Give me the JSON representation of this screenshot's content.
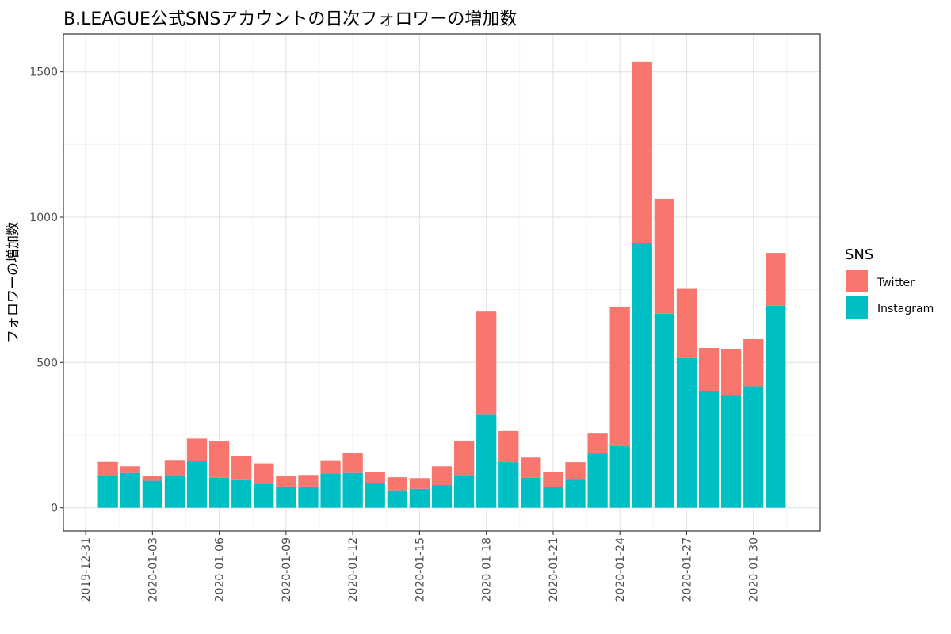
{
  "chart_data": {
    "type": "bar",
    "stacked": true,
    "title": "B.LEAGUE公式SNSアカウントの日次フォロワーの増加数",
    "xlabel": "",
    "ylabel": "フォロワーの増加数",
    "ylim": [
      -80,
      1630
    ],
    "yticks": [
      0,
      500,
      1000,
      1500
    ],
    "x_start": "2019-12-30",
    "x_end": "2020-02-02",
    "xticks": [
      "2019-12-31",
      "2020-01-03",
      "2020-01-06",
      "2020-01-09",
      "2020-01-12",
      "2020-01-15",
      "2020-01-18",
      "2020-01-21",
      "2020-01-24",
      "2020-01-27",
      "2020-01-30"
    ],
    "grid": true,
    "legend": {
      "title": "SNS",
      "position": "right"
    },
    "categories": [
      "2020-01-01",
      "2020-01-02",
      "2020-01-03",
      "2020-01-04",
      "2020-01-05",
      "2020-01-06",
      "2020-01-07",
      "2020-01-08",
      "2020-01-09",
      "2020-01-10",
      "2020-01-11",
      "2020-01-12",
      "2020-01-13",
      "2020-01-14",
      "2020-01-15",
      "2020-01-16",
      "2020-01-17",
      "2020-01-18",
      "2020-01-19",
      "2020-01-20",
      "2020-01-21",
      "2020-01-22",
      "2020-01-23",
      "2020-01-24",
      "2020-01-25",
      "2020-01-26",
      "2020-01-27",
      "2020-01-28",
      "2020-01-29",
      "2020-01-30",
      "2020-01-31"
    ],
    "series": [
      {
        "name": "Instagram",
        "color": "#00BFC4",
        "values": [
          110,
          120,
          93,
          112,
          160,
          103,
          95,
          83,
          73,
          73,
          118,
          120,
          85,
          60,
          65,
          78,
          113,
          320,
          157,
          103,
          72,
          97,
          187,
          212,
          910,
          668,
          515,
          400,
          385,
          418,
          695
        ]
      },
      {
        "name": "Twitter",
        "color": "#F8766D",
        "values": [
          48,
          23,
          18,
          50,
          78,
          125,
          82,
          70,
          38,
          40,
          43,
          70,
          38,
          45,
          37,
          65,
          118,
          355,
          107,
          70,
          52,
          60,
          68,
          480,
          625,
          395,
          238,
          150,
          160,
          162,
          182
        ]
      }
    ]
  }
}
